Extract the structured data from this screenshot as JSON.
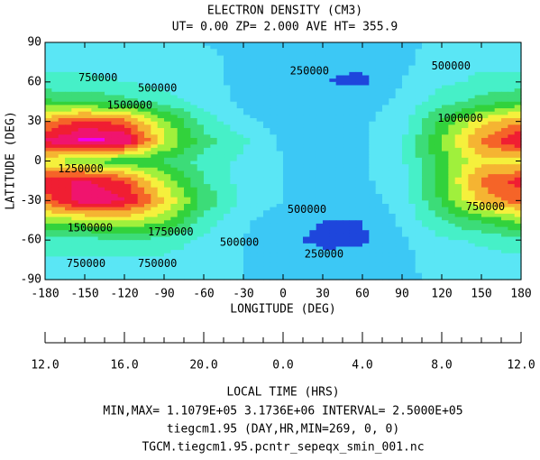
{
  "chart_data": {
    "type": "contour",
    "title": "ELECTRON DENSITY (CM3)",
    "subtitle": "UT= 0.00 ZP=  2.000 AVE HT= 355.9",
    "x_label": "LONGITUDE (DEG)",
    "y_label": "LATITUDE (DEG)",
    "x2_label": "LOCAL TIME (HRS)",
    "footer": [
      "MIN,MAX=  1.1079E+05  3.1736E+06 INTERVAL=  2.5000E+05",
      "tiegcm1.95  (DAY,HR,MIN=269, 0, 0)",
      "TGCM.tiegcm1.95.pcntr_sepeqx_smin_001.nc"
    ],
    "x": [
      -180,
      -150,
      -120,
      -90,
      -60,
      -30,
      0,
      30,
      60,
      90,
      120,
      150,
      180
    ],
    "y": [
      90,
      75,
      60,
      45,
      30,
      15,
      0,
      -15,
      -30,
      -45,
      -60,
      -75,
      -90
    ],
    "values": [
      [
        600000,
        600000,
        600000,
        550000,
        500000,
        450000,
        400000,
        400000,
        400000,
        450000,
        550000,
        600000,
        600000
      ],
      [
        700000,
        700000,
        650000,
        600000,
        550000,
        450000,
        350000,
        300000,
        300000,
        450000,
        600000,
        700000,
        700000
      ],
      [
        800000,
        800000,
        750000,
        650000,
        550000,
        450000,
        300000,
        250000,
        200000,
        500000,
        700000,
        800000,
        800000
      ],
      [
        1300000,
        1200000,
        1100000,
        900000,
        650000,
        450000,
        350000,
        400000,
        400000,
        550000,
        900000,
        1100000,
        1300000
      ],
      [
        2200000,
        2600000,
        2400000,
        1600000,
        900000,
        550000,
        400000,
        450000,
        450000,
        650000,
        1300000,
        1900000,
        2200000
      ],
      [
        2800000,
        3100000,
        3000000,
        1800000,
        1100000,
        800000,
        450000,
        450000,
        450000,
        700000,
        1500000,
        2300000,
        2800000
      ],
      [
        1800000,
        1500000,
        1300000,
        1200000,
        900000,
        700000,
        500000,
        450000,
        450000,
        700000,
        1400000,
        1900000,
        1800000
      ],
      [
        2600000,
        2800000,
        2500000,
        1700000,
        1000000,
        650000,
        500000,
        450000,
        450000,
        650000,
        1400000,
        2300000,
        2600000
      ],
      [
        2400000,
        2900000,
        2800000,
        2000000,
        1200000,
        700000,
        500000,
        400000,
        400000,
        600000,
        1300000,
        2100000,
        2400000
      ],
      [
        1600000,
        1700000,
        1800000,
        1600000,
        900000,
        550000,
        350000,
        250000,
        250000,
        550000,
        1000000,
        1300000,
        1600000
      ],
      [
        900000,
        900000,
        1000000,
        900000,
        700000,
        500000,
        300000,
        200000,
        200000,
        450000,
        700000,
        800000,
        900000
      ],
      [
        700000,
        700000,
        700000,
        700000,
        600000,
        500000,
        400000,
        300000,
        350000,
        450000,
        600000,
        650000,
        700000
      ],
      [
        600000,
        600000,
        600000,
        600000,
        550000,
        500000,
        450000,
        400000,
        400000,
        450000,
        550000,
        600000,
        600000
      ]
    ],
    "levels": [
      250000,
      500000,
      750000,
      1000000,
      1250000,
      1500000,
      1750000,
      2000000,
      2250000,
      2500000,
      2750000,
      3000000
    ],
    "colors": [
      "#1e46dc",
      "#3cc8f5",
      "#5ae6f5",
      "#46f0c8",
      "#3cdc78",
      "#32d23c",
      "#a0f03c",
      "#f5f03c",
      "#f5b432",
      "#f56428",
      "#f01e32",
      "#f0146e",
      "#f000f0"
    ],
    "xlim": [
      -180,
      180
    ],
    "ylim": [
      -90,
      90
    ],
    "xticks": [
      -180,
      -150,
      -120,
      -90,
      -60,
      -30,
      0,
      30,
      60,
      90,
      120,
      150,
      180
    ],
    "yticks": [
      -90,
      -60,
      -30,
      0,
      30,
      60,
      90
    ],
    "x2lim": [
      -180,
      180
    ],
    "x2ticks": [
      {
        "value": -180,
        "label": "12.0"
      },
      {
        "value": -120,
        "label": "16.0"
      },
      {
        "value": -60,
        "label": "20.0"
      },
      {
        "value": 0,
        "label": "0.0"
      },
      {
        "value": 60,
        "label": "4.0"
      },
      {
        "value": 120,
        "label": "8.0"
      },
      {
        "value": 180,
        "label": "12.0"
      }
    ],
    "x2minorticks": [
      -180,
      -165,
      -150,
      -135,
      -120,
      -105,
      -90,
      -75,
      -60,
      -45,
      -30,
      -15,
      0,
      15,
      30,
      45,
      60,
      75,
      90,
      105,
      120,
      135,
      150,
      165,
      180
    ],
    "annotations": [
      {
        "text": "750000",
        "x": -140,
        "y": 63
      },
      {
        "text": "500000",
        "x": -95,
        "y": 55
      },
      {
        "text": "250000",
        "x": 20,
        "y": 68
      },
      {
        "text": "500000",
        "x": 127,
        "y": 72
      },
      {
        "text": "1500000",
        "x": -116,
        "y": 42
      },
      {
        "text": "1000000",
        "x": 134,
        "y": 32
      },
      {
        "text": "1250000",
        "x": -153,
        "y": -6
      },
      {
        "text": "1500000",
        "x": -146,
        "y": -51
      },
      {
        "text": "1750000",
        "x": -85,
        "y": -54
      },
      {
        "text": "500000",
        "x": -33,
        "y": -62
      },
      {
        "text": "500000",
        "x": 18,
        "y": -37
      },
      {
        "text": "750000",
        "x": 153,
        "y": -35
      },
      {
        "text": "250000",
        "x": 31,
        "y": -71
      },
      {
        "text": "750000",
        "x": -149,
        "y": -78
      },
      {
        "text": "750000",
        "x": -95,
        "y": -78
      }
    ]
  }
}
